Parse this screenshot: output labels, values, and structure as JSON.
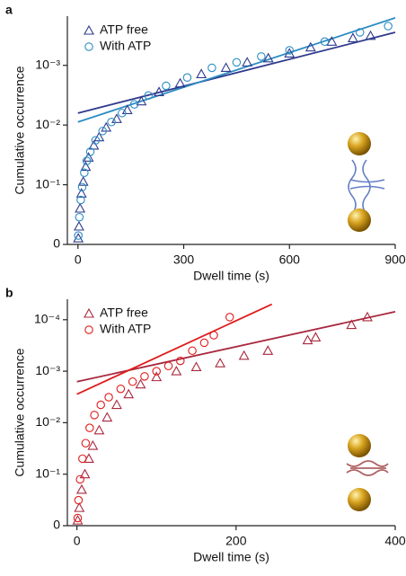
{
  "chart_data": [
    {
      "type": "scatter",
      "panel_label": "a",
      "xlabel": "Dwell time (s)",
      "ylabel": "Cumulative occurrence",
      "xlim": [
        -30,
        900
      ],
      "xticks": [
        0,
        300,
        600,
        900
      ],
      "ylim": [
        0,
        0.00015
      ],
      "yscale": "log",
      "yticks": [
        0,
        {
          "value": 0.1,
          "label": "10⁻¹"
        },
        {
          "value": 0.01,
          "label": "10⁻²"
        },
        {
          "value": 0.001,
          "label": "10⁻³"
        }
      ],
      "series": [
        {
          "name": "ATP free",
          "marker": "triangle",
          "color": "#2e3a8c",
          "x": [
            1,
            3,
            6,
            10,
            15,
            22,
            30,
            45,
            60,
            80,
            110,
            140,
            180,
            230,
            290,
            350,
            420,
            480,
            540,
            600,
            660,
            720,
            780,
            830
          ],
          "values": [
            0.79,
            0.5,
            0.25,
            0.14,
            0.089,
            0.05,
            0.035,
            0.022,
            0.016,
            0.011,
            0.0079,
            0.0056,
            0.004,
            0.0028,
            0.002,
            0.0014,
            0.0011,
            0.00089,
            0.00076,
            0.00063,
            0.0005,
            0.0004,
            0.00035,
            0.00032
          ]
        },
        {
          "name": "With ATP",
          "marker": "circle",
          "color": "#2b8cc4",
          "x": [
            1,
            4,
            8,
            12,
            18,
            25,
            35,
            50,
            70,
            95,
            125,
            160,
            200,
            250,
            310,
            380,
            450,
            520,
            600,
            700,
            800,
            880
          ],
          "values": [
            0.71,
            0.35,
            0.18,
            0.11,
            0.063,
            0.04,
            0.028,
            0.018,
            0.0126,
            0.0089,
            0.0063,
            0.0045,
            0.0032,
            0.0022,
            0.0016,
            0.0011,
            0.00089,
            0.00071,
            0.00056,
            0.0004,
            0.00028,
            0.00022
          ]
        }
      ],
      "fits": [
        {
          "color": "#2e3a8c",
          "x": [
            0,
            900
          ],
          "values": [
            0.0063,
            0.00028
          ]
        },
        {
          "color": "#2b8cc4",
          "x": [
            0,
            900
          ],
          "values": [
            0.0089,
            0.00016
          ]
        }
      ]
    },
    {
      "type": "scatter",
      "panel_label": "b",
      "xlabel": "Dwell time (s)",
      "ylabel": "Cumulative occurrence",
      "xlim": [
        -12,
        400
      ],
      "xticks": [
        0,
        200,
        400
      ],
      "ylim": [
        0,
        4e-05
      ],
      "yscale": "log",
      "yticks": [
        0,
        {
          "value": 0.1,
          "label": "10⁻¹"
        },
        {
          "value": 0.01,
          "label": "10⁻²"
        },
        {
          "value": 0.001,
          "label": "10⁻³"
        },
        {
          "value": 0.0001,
          "label": "10⁻⁴"
        }
      ],
      "series": [
        {
          "name": "ATP free",
          "marker": "triangle",
          "color": "#a8283e",
          "x": [
            1,
            3,
            6,
            10,
            15,
            20,
            28,
            38,
            50,
            65,
            80,
            100,
            125,
            150,
            180,
            210,
            240,
            290,
            300,
            345,
            365
          ],
          "values": [
            0.79,
            0.45,
            0.2,
            0.1,
            0.05,
            0.028,
            0.014,
            0.0079,
            0.0045,
            0.0028,
            0.0018,
            0.0013,
            0.001,
            0.00083,
            0.0007,
            0.0005,
            0.0004,
            0.00025,
            0.00022,
            0.000126,
            8.9e-05
          ]
        },
        {
          "name": "With ATP",
          "marker": "circle",
          "color": "#e01b1b",
          "x": [
            1,
            2,
            4,
            7,
            11,
            16,
            22,
            30,
            40,
            55,
            70,
            85,
            100,
            115,
            130,
            145,
            160,
            172,
            192
          ],
          "values": [
            0.71,
            0.32,
            0.126,
            0.05,
            0.025,
            0.0126,
            0.0071,
            0.0045,
            0.0032,
            0.0022,
            0.0016,
            0.00126,
            0.001,
            0.00079,
            0.00063,
            0.0004,
            0.00028,
            0.0002,
            8.9e-05
          ]
        }
      ],
      "fits": [
        {
          "color": "#a8283e",
          "x": [
            0,
            400
          ],
          "values": [
            0.0016,
            7e-05
          ]
        },
        {
          "color": "#e01b1b",
          "x": [
            0,
            245
          ],
          "values": [
            0.0028,
            5e-05
          ]
        }
      ]
    }
  ]
}
